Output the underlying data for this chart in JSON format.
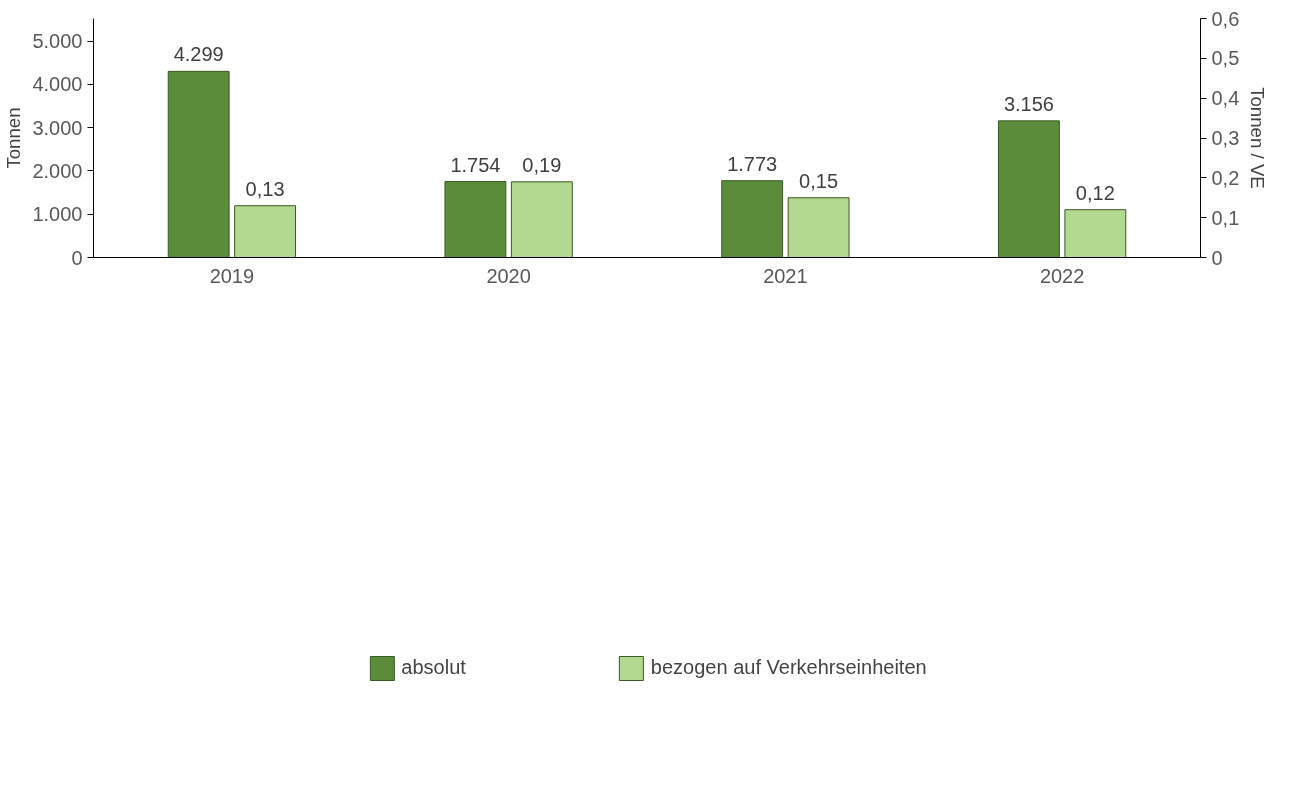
{
  "chart_data": {
    "type": "bar",
    "categories": [
      "2019",
      "2020",
      "2021",
      "2022"
    ],
    "ylabel": "Tonnen",
    "y2label": "Tonnen / VE",
    "series": [
      {
        "name": "absolut",
        "color": "#5b8c3a",
        "values": [
          4299,
          1754,
          1773,
          3156
        ],
        "value_labels": [
          "4.299",
          "1.754",
          "1.773",
          "3.156"
        ]
      },
      {
        "name": "bezogen auf Verkehrseinheiten",
        "color": "#b2d98f",
        "values": [
          0.13,
          0.19,
          0.15,
          0.12
        ],
        "axis": "y2",
        "value_labels": [
          "0,13",
          "0,19",
          "0,15",
          "0,12"
        ]
      }
    ],
    "ylim": [
      0,
      5520
    ],
    "yticks": [
      0,
      {
        "value": 1000,
        "label": "1.000"
      },
      {
        "value": 2000,
        "label": "2.000"
      },
      {
        "value": 3000,
        "label": "3.000"
      },
      {
        "value": 4000,
        "label": "4.000"
      },
      {
        "value": 5000,
        "label": "5.000"
      }
    ],
    "y2lim": [
      0,
      0.6
    ],
    "y2ticks": [
      0,
      {
        "value": 0.1,
        "label": "0,1"
      },
      {
        "value": 0.2,
        "label": "0,2"
      },
      {
        "value": 0.3,
        "label": "0,3"
      },
      {
        "value": 0.4,
        "label": "0,4"
      },
      {
        "value": 0.5,
        "label": "0,5"
      },
      {
        "value": 0.6,
        "label": "0,6"
      }
    ],
    "grid": false,
    "legend": "bottom"
  }
}
